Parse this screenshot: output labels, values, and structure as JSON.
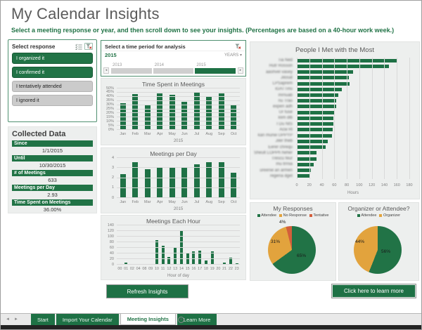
{
  "header": {
    "title": "My Calendar Insights",
    "subtitle": "Select a meeting response or year, and then scroll down to see your insights. (Percentages are based on a 40-hour work week.)"
  },
  "slicer": {
    "title": "Select response",
    "items": [
      {
        "label": "I organized it",
        "selected": true
      },
      {
        "label": "I confirmed it",
        "selected": true
      },
      {
        "label": "I tentatively attended",
        "selected": false
      },
      {
        "label": "I ignored it",
        "selected": false
      }
    ]
  },
  "collected_data": {
    "title": "Collected Data",
    "rows": [
      {
        "label": "Since",
        "value": "1/1/2015"
      },
      {
        "label": "Until",
        "value": "10/30/2015"
      },
      {
        "label": "# of Meetings",
        "value": "633"
      },
      {
        "label": "Meetings per Day",
        "value": "2.93"
      },
      {
        "label": "Time Spent on Meetings",
        "value": "36.00%"
      }
    ]
  },
  "timeline": {
    "title": "Select a time period for analysis",
    "selection_label": "2015",
    "period_unit": "YEARS",
    "caret": "▾",
    "years": [
      "2013",
      "2014",
      "2015"
    ],
    "selected_year": "2015"
  },
  "buttons": {
    "refresh": "Refresh Insights",
    "learn_more": "Click here to learn more"
  },
  "sheet_tabs": {
    "prev_arrow": "◄",
    "next_arrow": "►",
    "tabs": [
      {
        "label": "Start",
        "active": false
      },
      {
        "label": "Import Your Calendar",
        "active": false
      },
      {
        "label": "Meeting Insights",
        "active": true
      },
      {
        "label": "Learn More",
        "active": false
      }
    ],
    "add_sheet": "+"
  },
  "colors": {
    "accent_green": "#217346",
    "bar_green": "#1e7145",
    "pie_gold": "#e2a33d",
    "pie_red": "#d35e3b",
    "unselected_gray": "#cbcbcb"
  },
  "chart_data": [
    {
      "id": "time-spent-in-meetings",
      "type": "bar",
      "title": "Time Spent in Meetings",
      "categories": [
        "Jan",
        "Feb",
        "Mar",
        "Apr",
        "May",
        "Jun",
        "Jul",
        "Aug",
        "Sep",
        "Oct"
      ],
      "values": [
        32,
        43,
        30,
        44,
        42,
        34,
        45,
        41,
        44,
        30
      ],
      "unit": "%",
      "xlabel": "2015",
      "ylim": [
        0,
        50
      ],
      "ytick_step": 5,
      "grid": true,
      "legend": false
    },
    {
      "id": "meetings-per-day",
      "type": "bar",
      "title": "Meetings per Day",
      "categories": [
        "Jan",
        "Feb",
        "Mar",
        "Apr",
        "May",
        "Jun",
        "Jul",
        "Aug",
        "Sep",
        "Oct"
      ],
      "values": [
        2.4,
        3.6,
        2.85,
        3.1,
        3.05,
        3.0,
        3.4,
        3.6,
        3.6,
        2.55
      ],
      "unit": "",
      "xlabel": "2015",
      "ylim": [
        0,
        4
      ],
      "ytick_step": 1,
      "grid": true,
      "legend": false
    },
    {
      "id": "meetings-each-hour",
      "type": "bar",
      "title": "Meetings Each Hour",
      "categories": [
        "00",
        "01",
        "02",
        "04",
        "08",
        "09",
        "10",
        "11",
        "12",
        "13",
        "14",
        "15",
        "16",
        "17",
        "18",
        "19",
        "20",
        "21",
        "22",
        "23"
      ],
      "values": [
        2,
        8,
        2,
        2,
        2,
        3,
        88,
        68,
        28,
        60,
        122,
        42,
        47,
        49,
        16,
        47,
        2,
        8,
        24,
        5
      ],
      "unit": "",
      "xlabel": "Hour of day",
      "ylim": [
        0,
        140
      ],
      "ytick_step": 20,
      "grid": true,
      "legend": false
    },
    {
      "id": "people-i-met-with-the-most",
      "type": "hbar",
      "title": "People I Met with the Most",
      "labels_blurred": true,
      "categories": [
        "Tia Ned",
        "Hutr Rosson",
        "aashvel vasey",
        "Jilosat",
        "LPSaprem",
        "iGATTinu",
        "mrnuab",
        "nu Trao",
        "expen adh",
        "Ur fuse",
        "klim dlb",
        "I Du NtS",
        "Acw Rl",
        "kan murwi UPPYP",
        "Jiler theb",
        "Eerer chrequ",
        "Sheult LOPPh heher",
        "Trescu feur",
        "mu trrnia",
        "ureerwi an armen",
        "regena dget"
      ],
      "values": [
        160,
        147,
        90,
        83,
        84,
        72,
        66,
        63,
        63,
        61,
        59,
        58,
        57,
        56,
        50,
        46,
        32,
        31,
        27,
        22,
        21
      ],
      "xlabel": "Hours",
      "xlim": [
        0,
        180
      ],
      "xtick_step": 20,
      "grid": true,
      "legend": false
    },
    {
      "id": "my-responses",
      "type": "pie",
      "title": "My Responses",
      "legend_position": "top",
      "slices": [
        {
          "label": "Attendee",
          "pct": 65,
          "color": "#217346"
        },
        {
          "label": "No Response",
          "pct": 31,
          "color": "#e2a33d"
        },
        {
          "label": "Tentative",
          "pct": 4,
          "color": "#d35e3b"
        }
      ]
    },
    {
      "id": "organizer-or-attendee",
      "type": "pie",
      "title": "Organizer or Attendee?",
      "legend_position": "top",
      "slices": [
        {
          "label": "Attendee",
          "pct": 56,
          "color": "#217346"
        },
        {
          "label": "Organizer",
          "pct": 44,
          "color": "#e2a33d"
        }
      ]
    }
  ]
}
